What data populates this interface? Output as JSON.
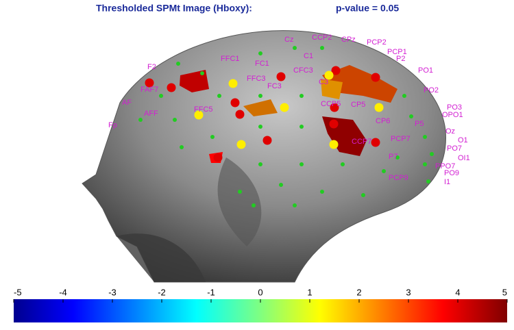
{
  "title": "Thresholded SPMt Image (Hboxy):",
  "threshold": "p-value = 0.05",
  "channels": [
    "Cz",
    "CCP2",
    "CPz",
    "PCP2",
    "PCP1",
    "P2",
    "FFC1",
    "FC1",
    "C1",
    "CFC3",
    "FFC3",
    "FC3",
    "C3",
    "CCP5",
    "CP5",
    "CP6",
    "P5",
    "PCP7",
    "CCP7",
    "P7",
    "PO7",
    "O1",
    "OI1",
    "I1",
    "PPO7",
    "PO9",
    "OPO1",
    "PO3",
    "Oz",
    "FAF7",
    "AF",
    "AFF",
    "Fp",
    "F2",
    "FFC5",
    "PO1",
    "PO2",
    "PCP9"
  ],
  "colorbar": {
    "lim": [
      -5,
      5
    ],
    "ticks": [
      -5,
      -4,
      -3,
      -2,
      -1,
      0,
      1,
      2,
      3,
      4,
      5
    ]
  }
}
